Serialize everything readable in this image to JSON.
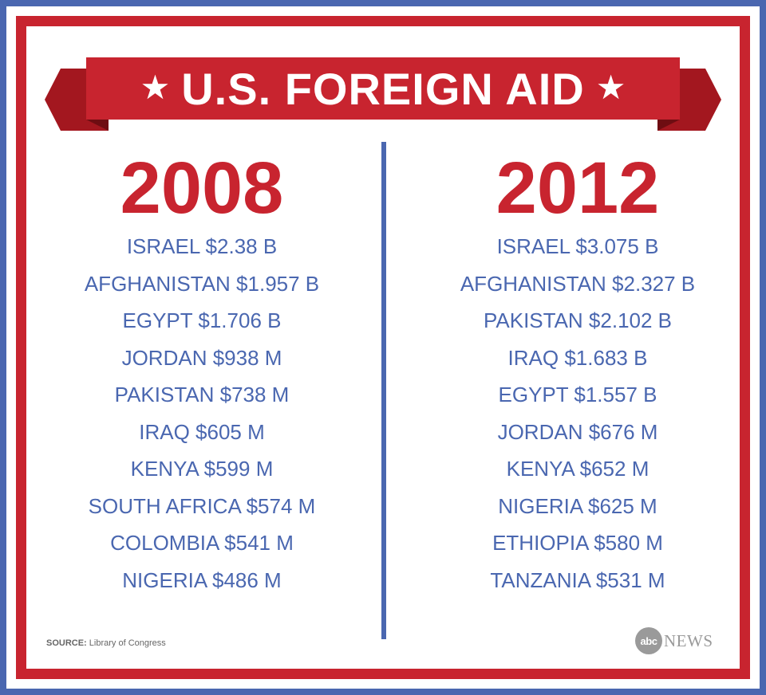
{
  "banner": {
    "title": "U.S. FOREIGN AID",
    "star": "★"
  },
  "columns": [
    {
      "year": "2008",
      "entries": [
        "ISRAEL $2.38 B",
        "AFGHANISTAN $1.957 B",
        "EGYPT $1.706 B",
        "JORDAN $938 M",
        "PAKISTAN $738 M",
        "IRAQ $605 M",
        "KENYA $599 M",
        "SOUTH AFRICA $574 M",
        "COLOMBIA $541 M",
        "NIGERIA $486 M"
      ]
    },
    {
      "year": "2012",
      "entries": [
        "ISRAEL $3.075 B",
        "AFGHANISTAN $2.327 B",
        "PAKISTAN $2.102 B",
        "IRAQ $1.683 B",
        "EGYPT $1.557 B",
        "JORDAN $676 M",
        "KENYA $652 M",
        "NIGERIA $625 M",
        "ETHIOPIA $580 M",
        "TANZANIA $531 M"
      ]
    }
  ],
  "source": {
    "label": "SOURCE:",
    "text": "Library of Congress"
  },
  "logo": {
    "abc": "abc",
    "news": "NEWS"
  },
  "colors": {
    "red": "#c8242f",
    "blue": "#4a67b0",
    "white": "#ffffff"
  }
}
